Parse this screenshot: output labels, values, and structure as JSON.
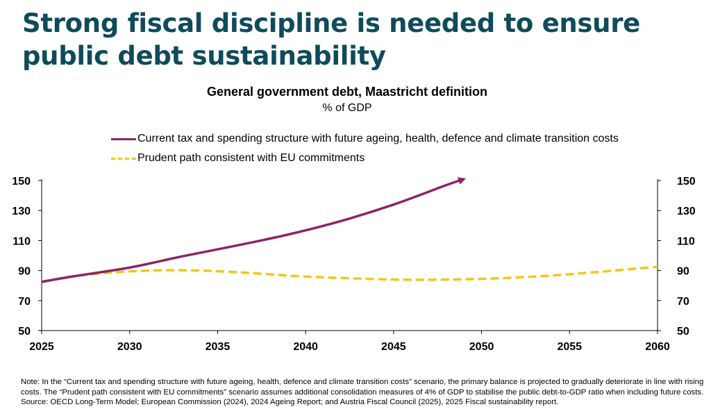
{
  "slide": {
    "title": "Strong fiscal discipline is needed to ensure public debt sustainability"
  },
  "chart_data": {
    "type": "line",
    "title": "General government debt, Maastricht definition",
    "subtitle": "% of GDP",
    "xlabel": "",
    "ylabel": "",
    "xlim": [
      2025,
      2060
    ],
    "ylim": [
      50,
      150
    ],
    "x_ticks": [
      "2025",
      "2030",
      "2035",
      "2040",
      "2045",
      "2050",
      "2055",
      "2060"
    ],
    "y_ticks": [
      "50",
      "70",
      "90",
      "110",
      "130",
      "150"
    ],
    "grid": false,
    "legend_position": "top-left",
    "series": [
      {
        "name": "Current tax and spending structure with future ageing, health, defence and climate transition costs",
        "color": "#8b2467",
        "style": "solid",
        "x": [
          2025,
          2027,
          2030,
          2033,
          2036,
          2039,
          2042,
          2045,
          2048,
          2049
        ],
        "values": [
          82.5,
          86.5,
          92,
          99.5,
          106.5,
          114,
          123,
          134,
          147,
          151
        ]
      },
      {
        "name": "Prudent path consistent with EU commitments",
        "color": "#f5c518",
        "style": "dashed",
        "x": [
          2025,
          2027,
          2030,
          2033,
          2036,
          2040,
          2045,
          2048,
          2050,
          2053,
          2056,
          2058,
          2060
        ],
        "values": [
          82.5,
          86.5,
          89.5,
          90.2,
          89,
          86,
          84,
          84,
          84.5,
          86,
          88.5,
          90.5,
          92.5
        ]
      }
    ]
  },
  "note": {
    "line1": "Note: In the “Current tax and spending structure with future ageing, health, defence and climate transition costs” scenario, the primary balance is projected to gradually deteriorate in line with rising costs. The “Prudent path consistent with EU commitments” scenario assumes additional consolidation measures of 4% of GDP to stabilise the public debt-to-GDP ratio when including future costs.",
    "line2": "Source: OECD Long-Term Model; European Commission (2024), 2024 Ageing Report; and Austria Fiscal Council (2025), 2025 Fiscal sustainability report."
  }
}
